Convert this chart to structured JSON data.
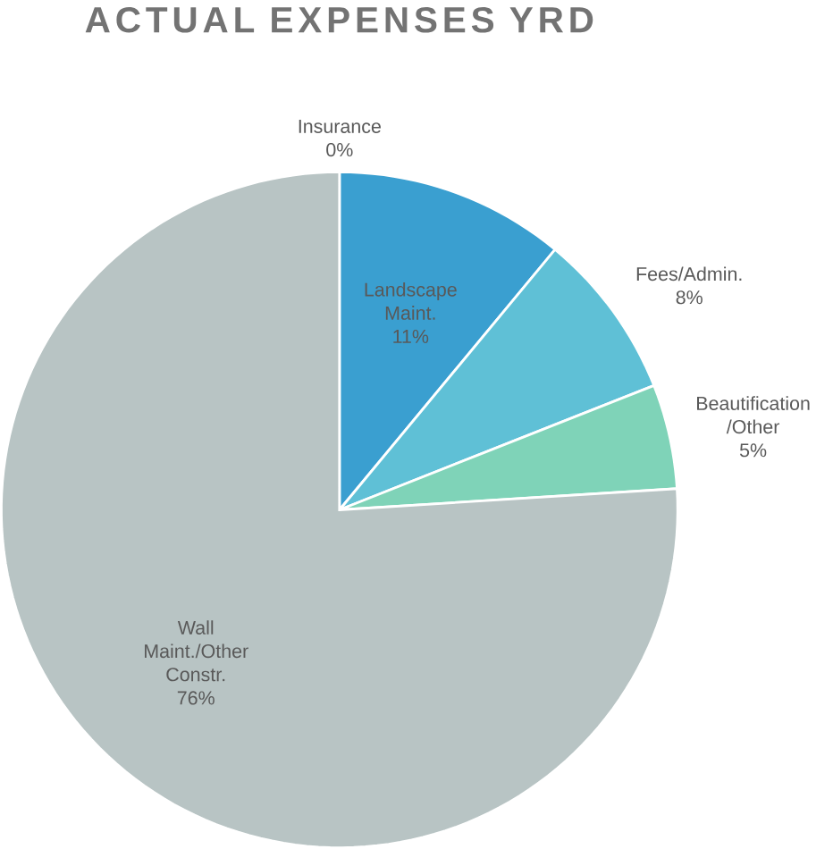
{
  "chart_data": {
    "type": "pie",
    "title": "ACTUAL EXPENSES YRD",
    "categories": [
      "Insurance",
      "Landscape Maint.",
      "Fees/Admin.",
      "Beautification /Other",
      "Wall Maint./Other Constr."
    ],
    "values": [
      0,
      11,
      8,
      5,
      76
    ],
    "value_labels": [
      "0%",
      "11%",
      "8%",
      "5%",
      "76%"
    ],
    "colors": [
      "#9dc3e6",
      "#3a9fd0",
      "#5fc0d6",
      "#7fd3b8",
      "#b8c4c4"
    ]
  }
}
